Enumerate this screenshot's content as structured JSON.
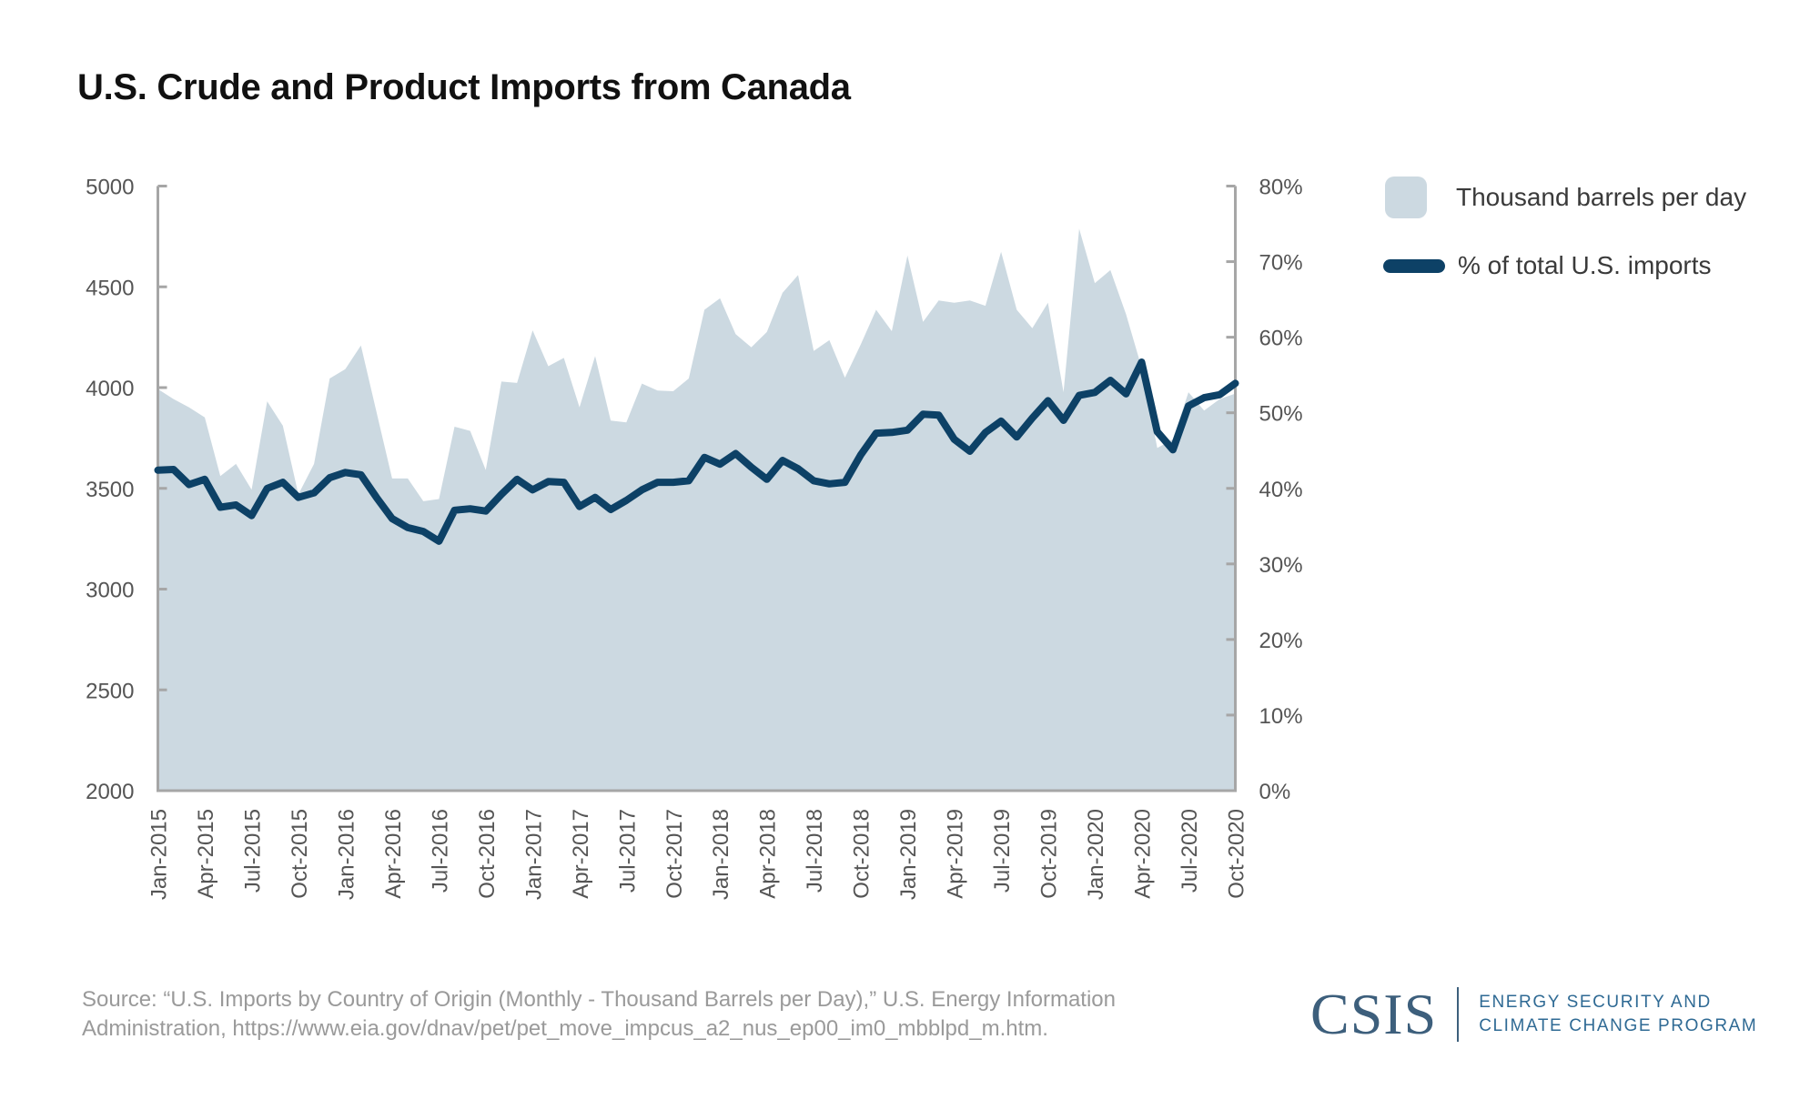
{
  "chart_data": {
    "type": "area+line",
    "title": "U.S. Crude and Product Imports from Canada",
    "xlabel": "",
    "ylabel_left": "",
    "ylabel_right": "",
    "ylim_left": [
      2000,
      5000
    ],
    "ylim_right": [
      0,
      80
    ],
    "yticks_left": [
      "5000",
      "4500",
      "4000",
      "3500",
      "3000",
      "2500",
      "2000"
    ],
    "yticks_left_values": [
      5000,
      4500,
      4000,
      3500,
      3000,
      2500,
      2000
    ],
    "yticks_right": [
      "80%",
      "70%",
      "60%",
      "50%",
      "40%",
      "30%",
      "20%",
      "10%",
      "0%"
    ],
    "yticks_right_values": [
      80,
      70,
      60,
      50,
      40,
      30,
      20,
      10,
      0
    ],
    "xtick_labels": [
      "Jan-2015",
      "Apr-2015",
      "Jul-2015",
      "Oct-2015",
      "Jan-2016",
      "Apr-2016",
      "Jul-2016",
      "Oct-2016",
      "Jan-2017",
      "Apr-2017",
      "Jul-2017",
      "Oct-2017",
      "Jan-2018",
      "Apr-2018",
      "Jul-2018",
      "Oct-2018",
      "Jan-2019",
      "Apr-2019",
      "Jul-2019",
      "Oct-2019",
      "Jan-2020",
      "Apr-2020",
      "Jul-2020",
      "Oct-2020"
    ],
    "x_start": "Jan-2015",
    "x_end": "Oct-2020",
    "x_count": 70,
    "grid": false,
    "legend_position": "right",
    "series": [
      {
        "name": "Thousand barrels per day",
        "type": "area",
        "axis": "left",
        "color": "#ccd9e1",
        "values": [
          3993,
          3943,
          3902,
          3852,
          3561,
          3621,
          3493,
          3932,
          3811,
          3470,
          3621,
          4045,
          4091,
          4209,
          3879,
          3549,
          3549,
          3436,
          3447,
          3806,
          3785,
          3591,
          4030,
          4023,
          4284,
          4106,
          4147,
          3902,
          4156,
          3836,
          3827,
          4020,
          3985,
          3982,
          4045,
          4386,
          4443,
          4265,
          4200,
          4276,
          4470,
          4558,
          4182,
          4235,
          4049,
          4212,
          4386,
          4280,
          4655,
          4326,
          4432,
          4421,
          4432,
          4406,
          4674,
          4386,
          4295,
          4421,
          3977,
          4788,
          4518,
          4583,
          4364,
          4100,
          3700,
          3743,
          3977,
          3886,
          3943,
          3970
        ]
      },
      {
        "name": "% of total U.S. imports",
        "type": "line",
        "axis": "right",
        "color": "#0d4166",
        "values": [
          42.4,
          42.5,
          40.5,
          41.2,
          37.5,
          37.8,
          36.4,
          40.0,
          40.8,
          38.8,
          39.4,
          41.4,
          42.1,
          41.8,
          38.8,
          36.0,
          34.8,
          34.3,
          33.0,
          37.1,
          37.3,
          37.0,
          39.2,
          41.2,
          39.8,
          40.9,
          40.8,
          37.6,
          38.8,
          37.2,
          38.4,
          39.8,
          40.8,
          40.8,
          41.0,
          44.1,
          43.2,
          44.6,
          42.8,
          41.2,
          43.7,
          42.6,
          41.0,
          40.6,
          40.8,
          44.4,
          47.3,
          47.4,
          47.7,
          49.8,
          49.7,
          46.5,
          44.9,
          47.4,
          48.9,
          46.8,
          49.3,
          51.6,
          49.0,
          52.3,
          52.7,
          54.3,
          52.5,
          56.7,
          47.5,
          45.1,
          50.9,
          52.0,
          52.4,
          53.9
        ]
      }
    ]
  },
  "legend": {
    "items": [
      {
        "label": "Thousand barrels per day"
      },
      {
        "label": "% of total U.S. imports"
      }
    ]
  },
  "footer": {
    "source_line1": "Source: “U.S. Imports by Country of Origin (Monthly - Thousand Barrels per Day),” U.S. Energy Information",
    "source_line2": "Administration, https://www.eia.gov/dnav/pet/pet_move_impcus_a2_nus_ep00_im0_mbblpd_m.htm.",
    "logo_mark": "CSIS",
    "logo_line1": "ENERGY SECURITY AND",
    "logo_line2": "CLIMATE CHANGE PROGRAM"
  }
}
